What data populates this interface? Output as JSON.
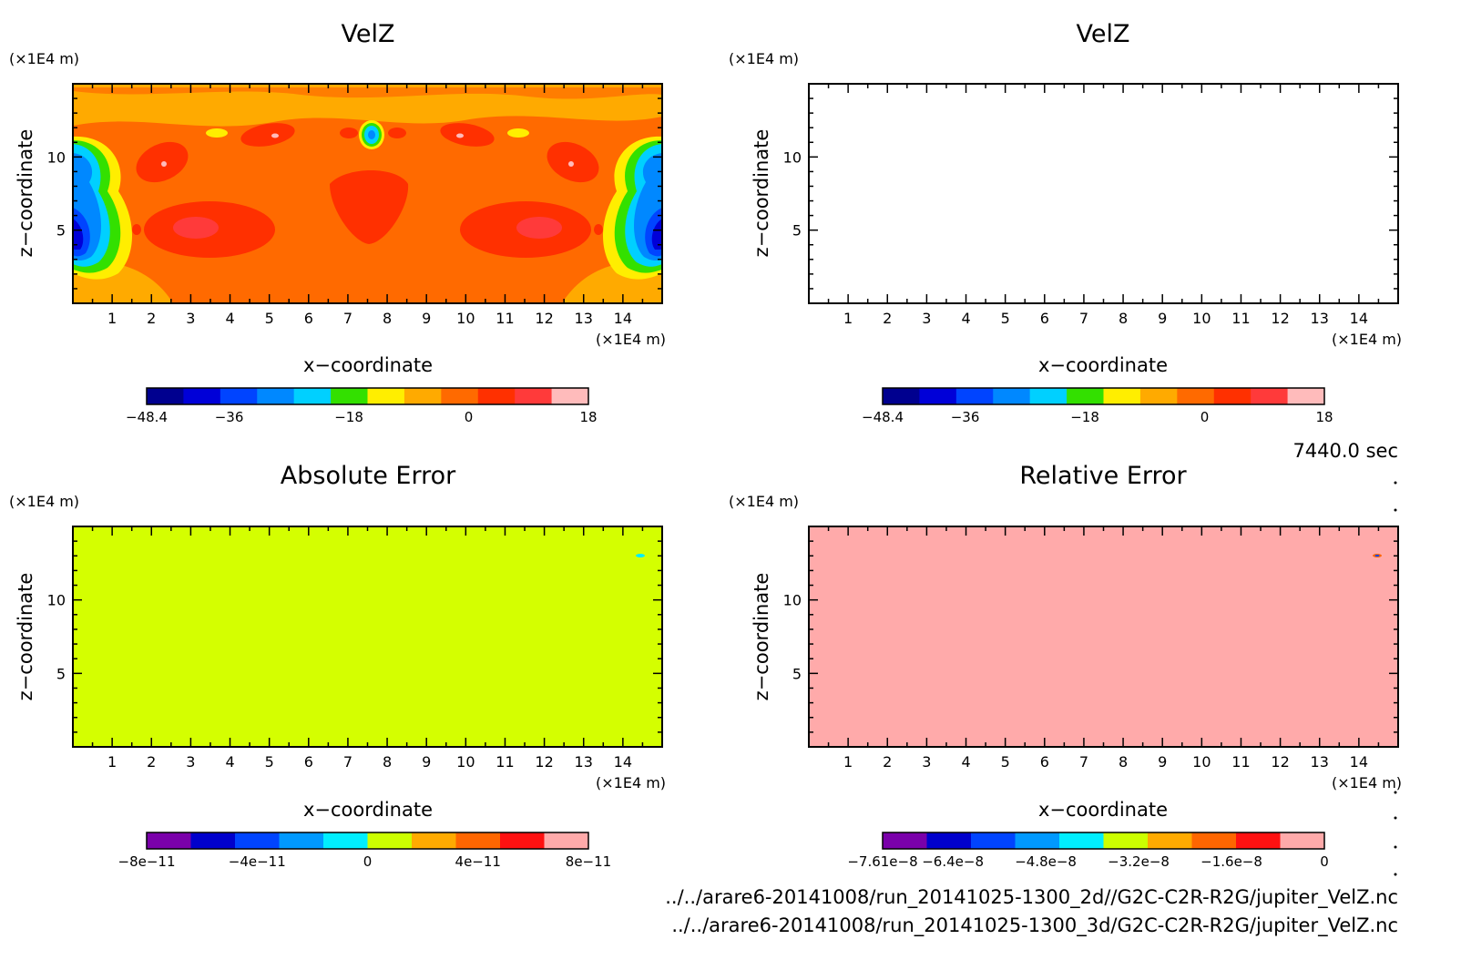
{
  "time_label": "7440.0 sec",
  "footer_lines": [
    "../../arare6-20141008/run_20141025-1300_2d//G2C-C2R-R2G/jupiter_VelZ.nc",
    "../../arare6-20141008/run_20141025-1300_3d/G2C-C2R-R2G/jupiter_VelZ.nc"
  ],
  "chart_data": [
    {
      "type": "heatmap",
      "title": "VelZ",
      "xlabel": "x−coordinate",
      "ylabel": "z−coordinate",
      "x_unit": "(×1E4 m)",
      "y_unit": "(×1E4 m)",
      "xlim": [
        0,
        15
      ],
      "ylim": [
        0,
        15
      ],
      "x_ticks": [
        "1",
        "2",
        "3",
        "4",
        "5",
        "6",
        "7",
        "8",
        "9",
        "10",
        "11",
        "12",
        "13",
        "14"
      ],
      "y_ticks": [
        "5",
        "10"
      ],
      "colorbar": {
        "colors": [
          "#00008f",
          "#0000d8",
          "#0044ff",
          "#0088ff",
          "#00d0ff",
          "#33e000",
          "#ffee00",
          "#ffaa00",
          "#ff6a00",
          "#ff3000",
          "#ff3a3a",
          "#ffbbbb"
        ],
        "tick_labels": [
          "−48.4",
          "−36",
          "−18",
          "0",
          "18"
        ],
        "tick_values": [
          -48.4,
          -36,
          -18,
          0,
          18
        ]
      }
    },
    {
      "type": "heatmap",
      "title": "VelZ",
      "xlabel": "x−coordinate",
      "ylabel": "z−coordinate",
      "x_unit": "(×1E4 m)",
      "y_unit": "(×1E4 m)",
      "xlim": [
        0,
        15
      ],
      "ylim": [
        0,
        15
      ],
      "x_ticks": [
        "1",
        "2",
        "3",
        "4",
        "5",
        "6",
        "7",
        "8",
        "9",
        "10",
        "11",
        "12",
        "13",
        "14"
      ],
      "y_ticks": [
        "5",
        "10"
      ],
      "colorbar": {
        "colors": [
          "#00008f",
          "#0000d8",
          "#0044ff",
          "#0088ff",
          "#00d0ff",
          "#33e000",
          "#ffee00",
          "#ffaa00",
          "#ff6a00",
          "#ff3000",
          "#ff3a3a",
          "#ffbbbb"
        ],
        "tick_labels": [
          "−48.4",
          "−36",
          "−18",
          "0",
          "18"
        ],
        "tick_values": [
          -48.4,
          -36,
          -18,
          0,
          18
        ]
      }
    },
    {
      "type": "heatmap",
      "title": "Absolute Error",
      "xlabel": "x−coordinate",
      "ylabel": "z−coordinate",
      "x_unit": "(×1E4 m)",
      "y_unit": "(×1E4 m)",
      "xlim": [
        0,
        15
      ],
      "ylim": [
        0,
        15
      ],
      "x_ticks": [
        "1",
        "2",
        "3",
        "4",
        "5",
        "6",
        "7",
        "8",
        "9",
        "10",
        "11",
        "12",
        "13",
        "14"
      ],
      "y_ticks": [
        "5",
        "10"
      ],
      "field_color": "#d4ff00",
      "colorbar": {
        "colors": [
          "#7a00aa",
          "#0000cc",
          "#0044ff",
          "#0099ff",
          "#00eeff",
          "#ccff00",
          "#ffaa00",
          "#ff6600",
          "#ff1111",
          "#ffaaaa"
        ],
        "tick_labels": [
          "−8e−11",
          "−4e−11",
          "0",
          "4e−11",
          "8e−11"
        ],
        "tick_values": [
          -8e-11,
          -4e-11,
          0,
          4e-11,
          8e-11
        ]
      }
    },
    {
      "type": "heatmap",
      "title": "Relative Error",
      "xlabel": "x−coordinate",
      "ylabel": "z−coordinate",
      "x_unit": "(×1E4 m)",
      "y_unit": "(×1E4 m)",
      "xlim": [
        0,
        15
      ],
      "ylim": [
        0,
        15
      ],
      "x_ticks": [
        "1",
        "2",
        "3",
        "4",
        "5",
        "6",
        "7",
        "8",
        "9",
        "10",
        "11",
        "12",
        "13",
        "14"
      ],
      "y_ticks": [
        "5",
        "10"
      ],
      "field_color": "#ffaaaa",
      "colorbar": {
        "colors": [
          "#7a00aa",
          "#0000cc",
          "#0044ff",
          "#0099ff",
          "#00eeff",
          "#ccff00",
          "#ffaa00",
          "#ff6600",
          "#ff1111",
          "#ffaaaa"
        ],
        "tick_labels": [
          "−7.61e−8",
          "−6.4e−8",
          "−4.8e−8",
          "−3.2e−8",
          "−1.6e−8",
          "0"
        ],
        "tick_values": [
          -7.61e-08,
          -6.4e-08,
          -4.8e-08,
          -3.2e-08,
          -1.6e-08,
          0
        ]
      }
    }
  ]
}
